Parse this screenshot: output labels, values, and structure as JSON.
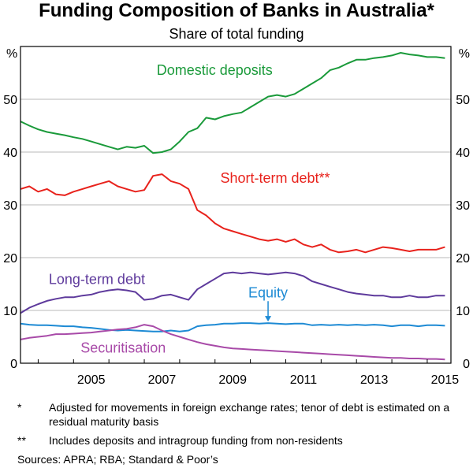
{
  "title": "Funding Composition of Banks in Australia*",
  "subtitle": "Share of total funding",
  "unit_left": "%",
  "unit_right": "%",
  "footnotes": [
    {
      "mark": "*",
      "text": "Adjusted for movements in foreign exchange rates; tenor of debt is estimated on a residual maturity basis"
    },
    {
      "mark": "**",
      "text": "Includes deposits and intragroup funding from non-residents"
    }
  ],
  "sources": "Sources:   APRA; RBA; Standard & Poor’s",
  "chart_data": {
    "type": "line",
    "xlim": [
      2003.5,
      2015.67
    ],
    "ylim": [
      0,
      60
    ],
    "xticks": [
      2005,
      2007,
      2009,
      2011,
      2013,
      2015
    ],
    "xticklabels": [
      "2005",
      "2007",
      "2009",
      "2011",
      "2013",
      "2015"
    ],
    "yticks": [
      0,
      10,
      20,
      30,
      40,
      50
    ],
    "yticklabels": [
      "0",
      "10",
      "20",
      "30",
      "40",
      "50"
    ],
    "grid": "horizontal",
    "series": [
      {
        "name": "Domestic deposits",
        "color": "#1a9a3a",
        "x": [
          2003.5,
          2003.75,
          2004.0,
          2004.25,
          2004.5,
          2004.75,
          2005.0,
          2005.25,
          2005.5,
          2005.75,
          2006.0,
          2006.25,
          2006.5,
          2006.75,
          2007.0,
          2007.25,
          2007.5,
          2007.75,
          2008.0,
          2008.25,
          2008.5,
          2008.75,
          2009.0,
          2009.25,
          2009.5,
          2009.75,
          2010.0,
          2010.25,
          2010.5,
          2010.75,
          2011.0,
          2011.25,
          2011.5,
          2011.75,
          2012.0,
          2012.25,
          2012.5,
          2012.75,
          2013.0,
          2013.25,
          2013.5,
          2013.75,
          2014.0,
          2014.25,
          2014.5,
          2014.75,
          2015.0,
          2015.25,
          2015.5
        ],
        "y": [
          45.8,
          45.0,
          44.3,
          43.8,
          43.5,
          43.2,
          42.8,
          42.5,
          42.0,
          41.5,
          41.0,
          40.5,
          41.0,
          40.8,
          41.2,
          39.8,
          40.0,
          40.5,
          42.0,
          43.8,
          44.5,
          46.5,
          46.2,
          46.8,
          47.2,
          47.5,
          48.5,
          49.5,
          50.5,
          50.8,
          50.5,
          51.0,
          52.0,
          53.0,
          54.0,
          55.5,
          56.0,
          56.8,
          57.5,
          57.5,
          57.8,
          58.0,
          58.3,
          58.8,
          58.5,
          58.3,
          58.0,
          58.0,
          57.8
        ]
      },
      {
        "name": "Short-term debt**",
        "color": "#e8221c",
        "x": [
          2003.5,
          2003.75,
          2004.0,
          2004.25,
          2004.5,
          2004.75,
          2005.0,
          2005.25,
          2005.5,
          2005.75,
          2006.0,
          2006.25,
          2006.5,
          2006.75,
          2007.0,
          2007.25,
          2007.5,
          2007.75,
          2008.0,
          2008.25,
          2008.5,
          2008.75,
          2009.0,
          2009.25,
          2009.5,
          2009.75,
          2010.0,
          2010.25,
          2010.5,
          2010.75,
          2011.0,
          2011.25,
          2011.5,
          2011.75,
          2012.0,
          2012.25,
          2012.5,
          2012.75,
          2013.0,
          2013.25,
          2013.5,
          2013.75,
          2014.0,
          2014.25,
          2014.5,
          2014.75,
          2015.0,
          2015.25,
          2015.5
        ],
        "y": [
          33.0,
          33.5,
          32.5,
          33.0,
          32.0,
          31.8,
          32.5,
          33.0,
          33.5,
          34.0,
          34.5,
          33.5,
          33.0,
          32.5,
          32.8,
          35.5,
          35.8,
          34.5,
          34.0,
          33.0,
          29.0,
          28.0,
          26.5,
          25.5,
          25.0,
          24.5,
          24.0,
          23.5,
          23.2,
          23.5,
          23.0,
          23.5,
          22.5,
          22.0,
          22.5,
          21.5,
          21.0,
          21.2,
          21.5,
          21.0,
          21.5,
          22.0,
          21.8,
          21.5,
          21.2,
          21.5,
          21.5,
          21.5,
          22.0
        ]
      },
      {
        "name": "Long-term debt",
        "color": "#5e3a9c",
        "x": [
          2003.5,
          2003.75,
          2004.0,
          2004.25,
          2004.5,
          2004.75,
          2005.0,
          2005.25,
          2005.5,
          2005.75,
          2006.0,
          2006.25,
          2006.5,
          2006.75,
          2007.0,
          2007.25,
          2007.5,
          2007.75,
          2008.0,
          2008.25,
          2008.5,
          2008.75,
          2009.0,
          2009.25,
          2009.5,
          2009.75,
          2010.0,
          2010.25,
          2010.5,
          2010.75,
          2011.0,
          2011.25,
          2011.5,
          2011.75,
          2012.0,
          2012.25,
          2012.5,
          2012.75,
          2013.0,
          2013.25,
          2013.5,
          2013.75,
          2014.0,
          2014.25,
          2014.5,
          2014.75,
          2015.0,
          2015.25,
          2015.5
        ],
        "y": [
          9.5,
          10.5,
          11.2,
          11.8,
          12.2,
          12.5,
          12.5,
          12.8,
          13.0,
          13.5,
          13.8,
          14.0,
          13.8,
          13.5,
          12.0,
          12.2,
          12.8,
          13.0,
          12.5,
          12.0,
          14.0,
          15.0,
          16.0,
          17.0,
          17.2,
          17.0,
          17.2,
          17.0,
          16.8,
          17.0,
          17.2,
          17.0,
          16.5,
          15.5,
          15.0,
          14.5,
          14.0,
          13.5,
          13.2,
          13.0,
          12.8,
          12.8,
          12.5,
          12.5,
          12.8,
          12.5,
          12.5,
          12.8,
          12.8
        ]
      },
      {
        "name": "Equity",
        "color": "#1d8ad4",
        "x": [
          2003.5,
          2003.75,
          2004.0,
          2004.25,
          2004.5,
          2004.75,
          2005.0,
          2005.25,
          2005.5,
          2005.75,
          2006.0,
          2006.25,
          2006.5,
          2006.75,
          2007.0,
          2007.25,
          2007.5,
          2007.75,
          2008.0,
          2008.25,
          2008.5,
          2008.75,
          2009.0,
          2009.25,
          2009.5,
          2009.75,
          2010.0,
          2010.25,
          2010.5,
          2010.75,
          2011.0,
          2011.25,
          2011.5,
          2011.75,
          2012.0,
          2012.25,
          2012.5,
          2012.75,
          2013.0,
          2013.25,
          2013.5,
          2013.75,
          2014.0,
          2014.25,
          2014.5,
          2014.75,
          2015.0,
          2015.25,
          2015.5
        ],
        "y": [
          7.5,
          7.3,
          7.2,
          7.2,
          7.1,
          7.0,
          7.0,
          6.8,
          6.7,
          6.5,
          6.3,
          6.2,
          6.3,
          6.2,
          6.1,
          6.0,
          6.0,
          6.2,
          6.0,
          6.2,
          7.0,
          7.2,
          7.3,
          7.5,
          7.5,
          7.6,
          7.6,
          7.5,
          7.6,
          7.5,
          7.4,
          7.5,
          7.5,
          7.2,
          7.3,
          7.2,
          7.3,
          7.2,
          7.3,
          7.2,
          7.3,
          7.2,
          7.0,
          7.2,
          7.2,
          7.0,
          7.2,
          7.2,
          7.1
        ]
      },
      {
        "name": "Securitisation",
        "color": "#a84aa8",
        "x": [
          2003.5,
          2003.75,
          2004.0,
          2004.25,
          2004.5,
          2004.75,
          2005.0,
          2005.25,
          2005.5,
          2005.75,
          2006.0,
          2006.25,
          2006.5,
          2006.75,
          2007.0,
          2007.25,
          2007.5,
          2007.75,
          2008.0,
          2008.25,
          2008.5,
          2008.75,
          2009.0,
          2009.25,
          2009.5,
          2009.75,
          2010.0,
          2010.25,
          2010.5,
          2010.75,
          2011.0,
          2011.25,
          2011.5,
          2011.75,
          2012.0,
          2012.25,
          2012.5,
          2012.75,
          2013.0,
          2013.25,
          2013.5,
          2013.75,
          2014.0,
          2014.25,
          2014.5,
          2014.75,
          2015.0,
          2015.25,
          2015.5
        ],
        "y": [
          4.5,
          4.8,
          5.0,
          5.2,
          5.5,
          5.5,
          5.6,
          5.7,
          5.8,
          6.0,
          6.2,
          6.4,
          6.5,
          6.8,
          7.3,
          7.0,
          6.2,
          5.5,
          5.0,
          4.5,
          4.0,
          3.6,
          3.3,
          3.0,
          2.8,
          2.7,
          2.6,
          2.5,
          2.4,
          2.3,
          2.2,
          2.1,
          2.0,
          1.9,
          1.8,
          1.7,
          1.6,
          1.5,
          1.4,
          1.3,
          1.2,
          1.1,
          1.0,
          1.0,
          0.9,
          0.9,
          0.8,
          0.8,
          0.7
        ]
      }
    ],
    "annotations": [
      {
        "text": "Domestic deposits",
        "x": 2007.35,
        "y": 54.6,
        "color": "#1a9a3a",
        "anchor": "start"
      },
      {
        "text": "Short-term debt**",
        "x": 2009.15,
        "y": 34.2,
        "color": "#e8221c",
        "anchor": "start"
      },
      {
        "text": "Long-term debt",
        "x": 2004.3,
        "y": 15.0,
        "color": "#5e3a9c",
        "anchor": "start"
      },
      {
        "text": "Equity",
        "x": 2010.5,
        "y": 12.5,
        "color": "#1d8ad4",
        "anchor": "middle",
        "arrow_to": [
          2010.5,
          7.9
        ]
      },
      {
        "text": "Securitisation",
        "x": 2005.2,
        "y": 2.0,
        "color": "#a84aa8",
        "anchor": "start"
      }
    ]
  }
}
